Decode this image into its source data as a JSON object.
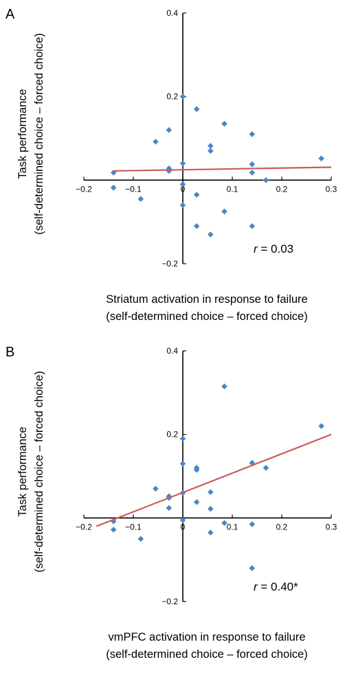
{
  "chart_data": [
    {
      "type": "scatter",
      "panel_label": "A",
      "ylabel": "Task performance\n(self-determined choice – forced choice)",
      "xlabel": "Striatum activation in response to failure\n(self-determined choice – forced choice)",
      "annotation": "r = 0.03",
      "annotation_r": "r",
      "annotation_value": " = 0.03",
      "xlim": [
        -0.2,
        0.3
      ],
      "ylim": [
        -0.2,
        0.4
      ],
      "x_ticks": [
        "−0.2",
        "−0.1",
        "0",
        "0.1",
        "0.2",
        "0.3"
      ],
      "y_ticks": [
        "−0.2",
        "0.2",
        "0.4"
      ],
      "y_tick_values": [
        -0.2,
        0.2,
        0.4
      ],
      "x_tick_values": [
        -0.2,
        -0.1,
        0,
        0.1,
        0.2,
        0.3
      ],
      "marker_color": "#4a86c8",
      "line_color": "#cc5b58",
      "trend_line": [
        [
          -0.14,
          0.022
        ],
        [
          0.3,
          0.031
        ]
      ],
      "points": [
        [
          -0.14,
          0.018
        ],
        [
          -0.14,
          -0.018
        ],
        [
          -0.085,
          -0.045
        ],
        [
          -0.055,
          0.092
        ],
        [
          -0.028,
          0.12
        ],
        [
          -0.028,
          0.028
        ],
        [
          -0.028,
          0.022
        ],
        [
          0,
          0.2
        ],
        [
          0,
          0.04
        ],
        [
          0,
          -0.01
        ],
        [
          0,
          -0.06
        ],
        [
          0.028,
          0.17
        ],
        [
          0.028,
          -0.035
        ],
        [
          0.028,
          -0.11
        ],
        [
          0.056,
          0.082
        ],
        [
          0.056,
          0.07
        ],
        [
          0.056,
          -0.13
        ],
        [
          0.084,
          0.135
        ],
        [
          0.084,
          -0.075
        ],
        [
          0.14,
          0.11
        ],
        [
          0.14,
          0.038
        ],
        [
          0.14,
          0.018
        ],
        [
          0.14,
          -0.11
        ],
        [
          0.168,
          0.0
        ],
        [
          0.28,
          0.052
        ]
      ]
    },
    {
      "type": "scatter",
      "panel_label": "B",
      "ylabel": "Task performance\n(self-determined choice – forced choice)",
      "xlabel": "vmPFC activation in response to failure\n(self-determined choice – forced choice)",
      "annotation": "r = 0.40*",
      "annotation_r": "r",
      "annotation_value": " = 0.40*",
      "xlim": [
        -0.2,
        0.3
      ],
      "ylim": [
        -0.2,
        0.4
      ],
      "x_ticks": [
        "−0.2",
        "−0.1",
        "0",
        "0.1",
        "0.2",
        "0.3"
      ],
      "y_ticks": [
        "−0.2",
        "0.2",
        "0.4"
      ],
      "y_tick_values": [
        -0.2,
        0.2,
        0.4
      ],
      "x_tick_values": [
        -0.2,
        -0.1,
        0,
        0.1,
        0.2,
        0.3
      ],
      "marker_color": "#4a86c8",
      "line_color": "#cc5b58",
      "trend_line": [
        [
          -0.175,
          -0.02
        ],
        [
          0.3,
          0.2
        ]
      ],
      "points": [
        [
          -0.14,
          -0.008
        ],
        [
          -0.14,
          -0.028
        ],
        [
          -0.085,
          -0.05
        ],
        [
          -0.055,
          0.07
        ],
        [
          -0.028,
          0.052
        ],
        [
          -0.028,
          0.048
        ],
        [
          -0.028,
          0.024
        ],
        [
          0,
          0.19
        ],
        [
          0,
          0.13
        ],
        [
          0,
          0.06
        ],
        [
          0,
          -0.005
        ],
        [
          0.028,
          0.12
        ],
        [
          0.028,
          0.115
        ],
        [
          0.028,
          0.038
        ],
        [
          0.056,
          0.062
        ],
        [
          0.056,
          0.022
        ],
        [
          0.056,
          -0.035
        ],
        [
          0.084,
          0.315
        ],
        [
          0.084,
          -0.012
        ],
        [
          0.14,
          0.132
        ],
        [
          0.14,
          -0.015
        ],
        [
          0.14,
          -0.12
        ],
        [
          0.168,
          0.12
        ],
        [
          0.28,
          0.22
        ]
      ]
    }
  ]
}
